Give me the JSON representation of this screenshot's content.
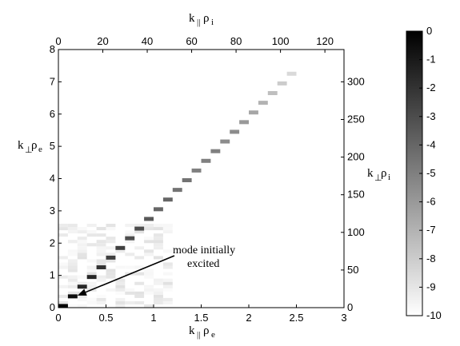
{
  "chart_data": {
    "type": "heatmap",
    "title": "",
    "x_bottom": {
      "label_main": "k",
      "label_sub1": "||",
      "label_mid": "ρ",
      "label_sub2": "e",
      "range": [
        0,
        3
      ],
      "ticks": [
        "0",
        "0.5",
        "1",
        "1.5",
        "2",
        "2.5",
        "3"
      ]
    },
    "x_top": {
      "label_main": "k",
      "label_sub1": "||",
      "label_mid": "ρ",
      "label_sub2": "i",
      "range": [
        0,
        128.6
      ],
      "ticks": [
        "0",
        "20",
        "40",
        "60",
        "80",
        "100",
        "120"
      ]
    },
    "y_left": {
      "label_main": "k",
      "label_sub1": "⊥",
      "label_mid": "ρ",
      "label_sub2": "e",
      "range": [
        0,
        8
      ],
      "ticks": [
        "0",
        "1",
        "2",
        "3",
        "4",
        "5",
        "6",
        "7",
        "8"
      ]
    },
    "y_right": {
      "label_main": "k",
      "label_sub1": "⊥",
      "label_mid": "ρ",
      "label_sub2": "i",
      "range": [
        0,
        342.9
      ],
      "ticks": [
        "0",
        "50",
        "100",
        "150",
        "200",
        "250",
        "300"
      ]
    },
    "colorbar": {
      "range": [
        -10,
        0
      ],
      "ticks": [
        "0",
        "-1",
        "-2",
        "-3",
        "-4",
        "-5",
        "-6",
        "-7",
        "-8",
        "-9",
        "-10"
      ]
    },
    "cells": [
      {
        "x": 0.05,
        "y": 0.05,
        "v": 0
      },
      {
        "x": 0.15,
        "y": 0.35,
        "v": -0.5
      },
      {
        "x": 0.25,
        "y": 0.65,
        "v": -1.5
      },
      {
        "x": 0.35,
        "y": 0.95,
        "v": -1.5
      },
      {
        "x": 0.45,
        "y": 1.25,
        "v": -2
      },
      {
        "x": 0.55,
        "y": 1.55,
        "v": -2.5
      },
      {
        "x": 0.65,
        "y": 1.85,
        "v": -2.5
      },
      {
        "x": 0.75,
        "y": 2.15,
        "v": -3
      },
      {
        "x": 0.85,
        "y": 2.45,
        "v": -3
      },
      {
        "x": 0.95,
        "y": 2.75,
        "v": -3.5
      },
      {
        "x": 1.05,
        "y": 3.05,
        "v": -4
      },
      {
        "x": 1.15,
        "y": 3.35,
        "v": -4
      },
      {
        "x": 1.25,
        "y": 3.65,
        "v": -4.5
      },
      {
        "x": 1.35,
        "y": 3.95,
        "v": -4.5
      },
      {
        "x": 1.45,
        "y": 4.25,
        "v": -5
      },
      {
        "x": 1.55,
        "y": 4.55,
        "v": -5
      },
      {
        "x": 1.65,
        "y": 4.85,
        "v": -5
      },
      {
        "x": 1.75,
        "y": 5.15,
        "v": -5.5
      },
      {
        "x": 1.85,
        "y": 5.45,
        "v": -5.5
      },
      {
        "x": 1.95,
        "y": 5.75,
        "v": -6
      },
      {
        "x": 2.05,
        "y": 6.05,
        "v": -6.5
      },
      {
        "x": 2.15,
        "y": 6.35,
        "v": -7
      },
      {
        "x": 2.25,
        "y": 6.65,
        "v": -7.5
      },
      {
        "x": 2.35,
        "y": 6.95,
        "v": -8
      },
      {
        "x": 2.45,
        "y": 7.25,
        "v": -8.5
      }
    ],
    "annotation": {
      "line1": "mode initially",
      "line2": "excited",
      "target_x": 0.15,
      "target_y": 0.35
    }
  }
}
